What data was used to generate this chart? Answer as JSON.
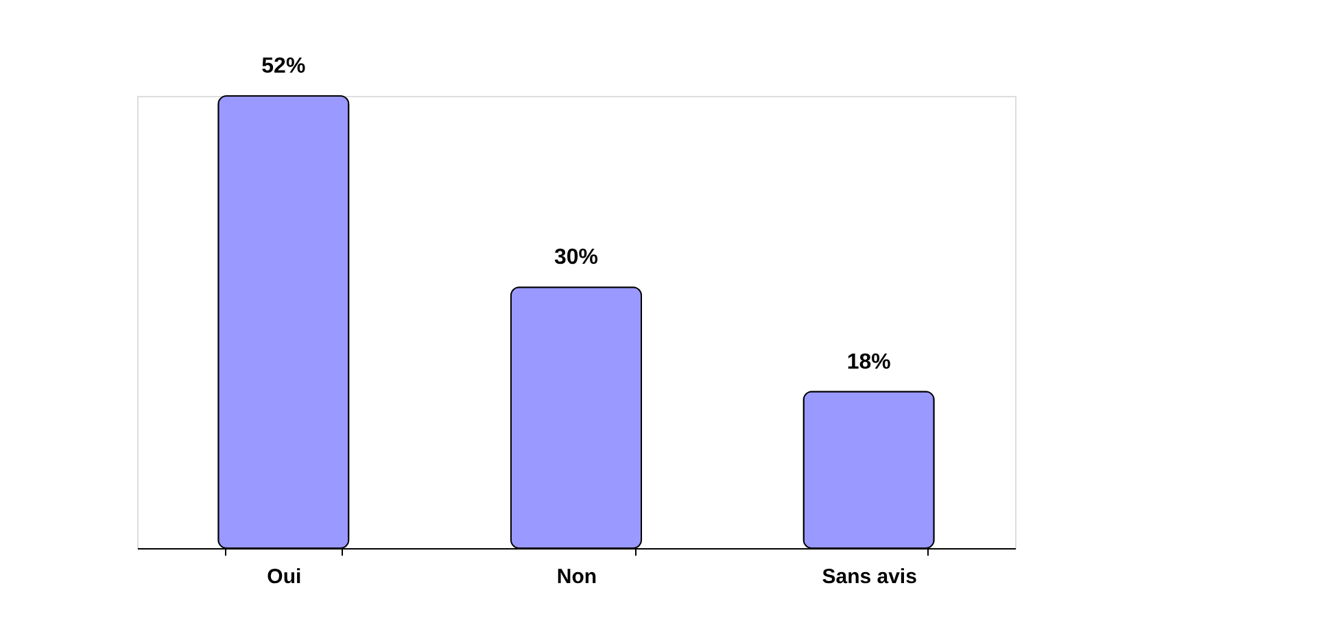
{
  "chart_data": {
    "type": "bar",
    "categories": [
      "Oui",
      "Non",
      "Sans avis"
    ],
    "values": [
      52,
      30,
      18
    ],
    "color": "#9999ff",
    "value_labels": [
      "52%",
      "30%",
      "18%"
    ],
    "grid": false
  }
}
